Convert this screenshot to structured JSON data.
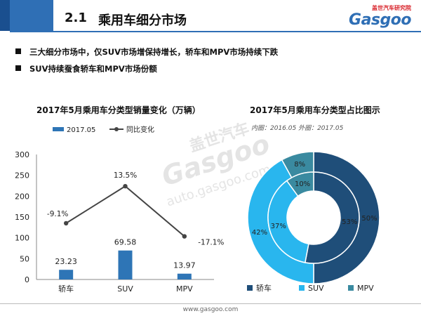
{
  "header": {
    "section_number": "2.1",
    "section_title": "乘用车细分市场",
    "brand_sub": "盖世汽车研究院",
    "brand_name": "Gasgoo"
  },
  "bullets": [
    "三大细分市场中，仅SUV市场增保持增长，轿车和MPV市场持续下跌",
    "SUV持续蚕食轿车和MPV市场份额"
  ],
  "watermark": {
    "cn": "盖世汽车",
    "logo": "Gasgoo",
    "url": "auto.gasgoo.com"
  },
  "footer": {
    "url": "www.gasgoo.com"
  },
  "colors": {
    "dark_blue": "#1f4e79",
    "blue": "#2e75b6",
    "light_blue": "#29b6ee",
    "teal": "#3a8aa0",
    "line": "#444444",
    "accent": "#2f6fb5"
  },
  "chart_data": [
    {
      "type": "bar",
      "title": "2017年5月乘用车分类型销量变化（万辆）",
      "categories": [
        "轿车",
        "SUV",
        "MPV"
      ],
      "ylim": [
        0,
        300
      ],
      "yticks": [
        0,
        50,
        100,
        150,
        200,
        250,
        300
      ],
      "series": [
        {
          "name": "2017.05",
          "kind": "bar",
          "values": [
            23.23,
            69.58,
            13.97
          ],
          "labels": [
            "23.23",
            "69.58",
            "13.97"
          ]
        },
        {
          "name": "同比变化",
          "kind": "line",
          "values": [
            -9.1,
            13.5,
            -17.1
          ],
          "labels": [
            "-9.1%",
            "13.5%",
            "-17.1%"
          ]
        }
      ],
      "legend": "top-left",
      "grid": false
    },
    {
      "type": "pie",
      "title": "2017年5月乘用车分类型占比图示",
      "subtitle": "内圈：2016.05   外圈：2017.05",
      "categories": [
        "轿车",
        "SUV",
        "MPV"
      ],
      "inner": {
        "name": "2016.05",
        "values": [
          53,
          37,
          10
        ],
        "labels": [
          "53%",
          "37%",
          "10%"
        ]
      },
      "outer": {
        "name": "2017.05",
        "values": [
          50,
          42,
          8
        ],
        "labels": [
          "50%",
          "42%",
          "8%"
        ]
      },
      "legend": "bottom"
    }
  ]
}
